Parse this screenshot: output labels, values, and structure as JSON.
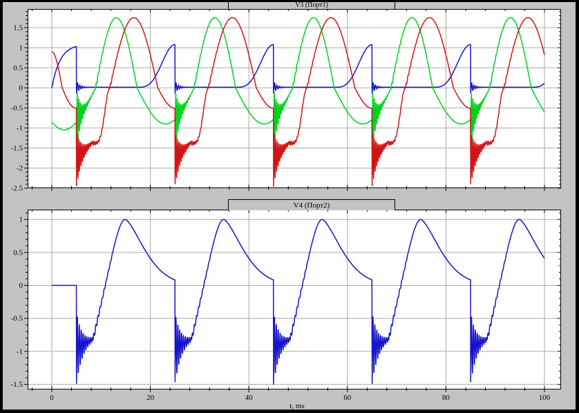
{
  "colors": {
    "chrome_frame": "#000000",
    "chrome_panel": "#c3c3c3",
    "plot_bg": "#ffffff",
    "grid": "#a8a8a8",
    "axis": "#000000",
    "trace_blue": "#1414cc",
    "trace_green": "#00d21e",
    "trace_red": "#d21414"
  },
  "sim_range_ms": [
    0,
    100
  ],
  "chart_data": [
    {
      "type": "line",
      "title": "V3 (Порт1)",
      "grid": true,
      "legend_position": "none",
      "x": {
        "min": -4.91,
        "max": 103.36,
        "label": "t, ms",
        "show_tick_labels": false,
        "minor_step": 4,
        "major_ticks": [
          {
            "v": 0,
            "label": "0"
          },
          {
            "v": 20,
            "label": "20"
          },
          {
            "v": 40,
            "label": "40"
          },
          {
            "v": 60,
            "label": "60"
          },
          {
            "v": 80,
            "label": "80"
          },
          {
            "v": 100,
            "label": "100"
          }
        ]
      },
      "y": {
        "min": -2.5,
        "max": 1.966,
        "minor_step": 0.1,
        "ticks": [
          {
            "v": 1.5,
            "label": "1.5"
          },
          {
            "v": 1,
            "label": "1"
          },
          {
            "v": 0.5,
            "label": "0.5"
          },
          {
            "v": 0,
            "label": "0"
          },
          {
            "v": -0.5,
            "label": "-0.5"
          },
          {
            "v": -1,
            "label": "-1"
          },
          {
            "v": -1.5,
            "label": "-1.5"
          },
          {
            "v": -2,
            "label": "-2"
          },
          {
            "v": -2.5,
            "label": "-2.5"
          }
        ]
      },
      "series": [
        {
          "name": "v3-blue",
          "color": "#1414cc",
          "description": "Gate ramp: rises to +1.08, vertical drop to ~-0.13 at t=5+20k ms, decaying ripple about 0.015, flat, then eased rise back to +1.08 before next drop.",
          "model": {
            "period": 20,
            "offset": 5,
            "first_end": 5,
            "first": [
              {
                "u": [
                  0,
                  5
                ],
                "kind": "exprise",
                "amp": 1.09,
                "tau": 1.7
              }
            ],
            "steady": [
              {
                "u": [
                  0,
                  2.4
                ],
                "kind": "ring",
                "mean0": 0.015,
                "slope": 0,
                "amp": 0.15,
                "tau": 0.7,
                "freq": 2.2
              },
              {
                "u": [
                  2.4,
                  12
                ],
                "kind": "flat",
                "v": 0.015
              },
              {
                "u": [
                  12,
                  20
                ],
                "kind": "powcos",
                "v0": 0.015,
                "v1": 1.08,
                "pow": 2
              }
            ]
          }
        },
        {
          "name": "v3-green",
          "color": "#00d21e",
          "description": "Distorted sine, +1.75 peak at t=13.3+20k ms, shallow negative lobe to ~-0.9, sawtooth ringdown spikes to ~-1.6 just after each drop at t=5+20k ms.",
          "model": {
            "period": 20,
            "offset": 5,
            "first_end": 5,
            "first": [
              {
                "u": [
                  0,
                  5
                ],
                "kind": "halfsine",
                "base": -0.86,
                "amp": -0.19
              }
            ],
            "steady": [
              {
                "u": [
                  0,
                  3.9
                ],
                "kind": "sinseg",
                "amp": -0.9,
                "p0": 2.085,
                "p1": 3.1416,
                "osc": {
                  "amp": 0.78,
                  "tau": 0.85,
                  "freq": 3.2,
                  "cos": true
                }
              },
              {
                "u": [
                  3.9,
                  12.3
                ],
                "kind": "halfsine",
                "amp": 1.75,
                "osc": {
                  "amp": 0.06,
                  "tau": 1.4,
                  "freq": 2.6
                }
              },
              {
                "u": [
                  12.3,
                  20
                ],
                "kind": "sinseg",
                "amp": -0.9,
                "p0": 0,
                "p1": 2.085
              }
            ]
          }
        },
        {
          "name": "v3-red",
          "color": "#d21414",
          "description": "Distorted sine, +1.75 peak at t=16.5+20k ms, shallow fall to -0.51, then deep sawtooth ringdown to -2.46 after each drop at t=5+20k ms, staircase recovery through zero.",
          "model": {
            "period": 20,
            "offset": 5,
            "first_end": 5,
            "first": [
              {
                "u": [
                  0,
                  2.1
                ],
                "kind": "sinseg",
                "amp": 0.9,
                "p0": 1.5708,
                "p1": 3.1416
              },
              {
                "u": [
                  2.1,
                  5
                ],
                "kind": "sinseg",
                "amp": -0.5,
                "p0": 0,
                "p1": 1.687
              }
            ],
            "steady": [
              {
                "u": [
                  0,
                  3.2
                ],
                "kind": "ring",
                "mean0": -1.78,
                "slope": 0.13,
                "amp": 0.68,
                "tau": 1.1,
                "freq": 3.2
              },
              {
                "u": [
                  3.2,
                  6.8
                ],
                "kind": "powcos",
                "v0": -1.38,
                "v1": 0,
                "pow": 2.6,
                "osc": {
                  "amp": 0.06,
                  "tau": 2.2,
                  "freq": 2.7
                }
              },
              {
                "u": [
                  6.8,
                  16.5
                ],
                "kind": "halfsine",
                "amp": 1.75,
                "osc": {
                  "amp": 0.05,
                  "tau": 1.1,
                  "freq": 2.7
                }
              },
              {
                "u": [
                  16.5,
                  20
                ],
                "kind": "sinseg",
                "amp": -0.51,
                "p0": 0,
                "p1": 1.5708
              }
            ]
          }
        }
      ]
    },
    {
      "type": "line",
      "title": "V4 (Порт2)",
      "grid": true,
      "legend_position": "none",
      "x": {
        "min": -4.91,
        "max": 103.36,
        "label": "t, ms",
        "show_tick_labels": true,
        "minor_step": 4,
        "major_ticks": [
          {
            "v": 0,
            "label": "0"
          },
          {
            "v": 20,
            "label": "20"
          },
          {
            "v": 40,
            "label": "40"
          },
          {
            "v": 60,
            "label": "60"
          },
          {
            "v": 80,
            "label": "80"
          },
          {
            "v": 100,
            "label": "100"
          }
        ]
      },
      "y": {
        "min": -1.578,
        "max": 1.149,
        "minor_step": 0.1,
        "ticks": [
          {
            "v": 1,
            "label": "1"
          },
          {
            "v": 0.5,
            "label": "0.5"
          },
          {
            "v": 0,
            "label": "0"
          },
          {
            "v": -0.5,
            "label": "-0.5"
          },
          {
            "v": -1,
            "label": "-1"
          },
          {
            "v": -1.5,
            "label": "-1.5"
          }
        ]
      },
      "series": [
        {
          "name": "v4-blue",
          "color": "#1414cc",
          "description": "Output: flat 0 until t=5 ms; at t=5+20k ms vertical drop to -1.5 with decaying ringdown, ramp up through zero to rounded +1.0 peak at t=15+20k ms, then exponential-like decay to ~0.08 before next drop.",
          "model": {
            "period": 20,
            "offset": 5,
            "first_end": 5,
            "first": [
              {
                "u": [
                  0,
                  5
                ],
                "kind": "flat",
                "v": 0
              }
            ],
            "steady": [
              {
                "u": [
                  0,
                  3.4
                ],
                "kind": "ring",
                "mean0": -0.95,
                "slope": 0.04,
                "amp": 0.55,
                "tau": 1.15,
                "freq": 2.6
              },
              {
                "u": [
                  3.4,
                  7.5
                ],
                "kind": "line",
                "v0": -0.81,
                "v1": 0.55,
                "osc": {
                  "amp": 0.05,
                  "tau": 2.4,
                  "freq": 2.4
                }
              },
              {
                "u": [
                  7.5,
                  9.9
                ],
                "kind": "sinseg",
                "base": 0.55,
                "amp": 0.45,
                "p0": 0,
                "p1": 1.5708
              },
              {
                "u": [
                  9.9,
                  20
                ],
                "kind": "expdecay",
                "v0": 1.0,
                "tau": 5.5,
                "pow": 1.5
              }
            ]
          }
        }
      ]
    }
  ]
}
